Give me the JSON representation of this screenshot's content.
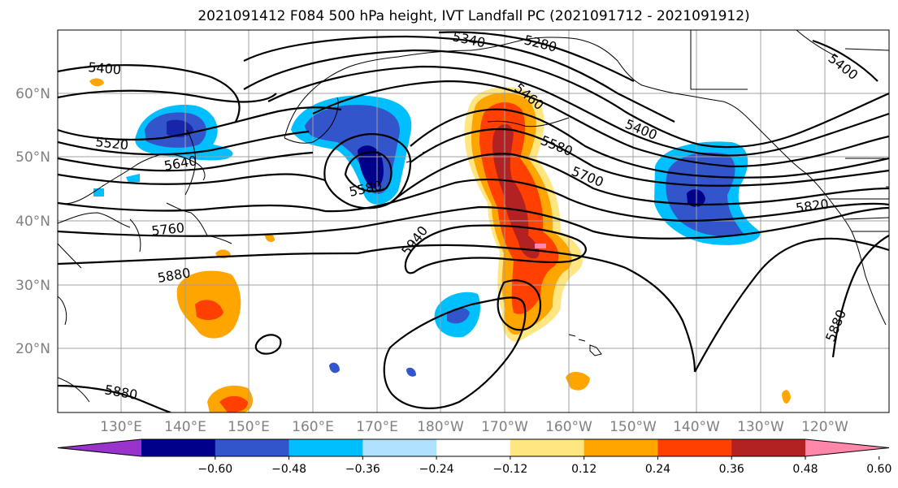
{
  "title": "2021091412 F084 500 hPa height, IVT Landfall PC (2021091712 - 2021091912)",
  "map": {
    "lat_labels": [
      "60°N",
      "50°N",
      "40°N",
      "30°N",
      "20°N"
    ],
    "lon_labels": [
      "130°E",
      "140°E",
      "150°E",
      "160°E",
      "170°E",
      "180°W",
      "170°W",
      "160°W",
      "150°W",
      "140°W",
      "130°W",
      "120°W"
    ],
    "height_contour_labels": [
      "5400",
      "5340",
      "5280",
      "5400",
      "5460",
      "5520",
      "5640",
      "5580",
      "5400",
      "5580",
      "5700",
      "5760",
      "5820",
      "5940",
      "5880",
      "5880",
      "5880"
    ],
    "colors": {
      "coastline": "#000000",
      "gridline": "#a0a0a0",
      "height_contour": "#000000"
    }
  },
  "colorbar": {
    "tick_labels": [
      "−0.60",
      "−0.48",
      "−0.36",
      "−0.24",
      "−0.12",
      "0.12",
      "0.24",
      "0.36",
      "0.48",
      "0.60"
    ],
    "ticks": [
      -0.6,
      -0.48,
      -0.36,
      -0.24,
      -0.12,
      0.12,
      0.24,
      0.36,
      0.48,
      0.6
    ],
    "colors": [
      "#9933cc",
      "#00008b",
      "#3355cc",
      "#00bfff",
      "#b0e2ff",
      "#ffffff",
      "#ffe680",
      "#ffa500",
      "#ff4000",
      "#b22222",
      "#ff88aa"
    ]
  }
}
